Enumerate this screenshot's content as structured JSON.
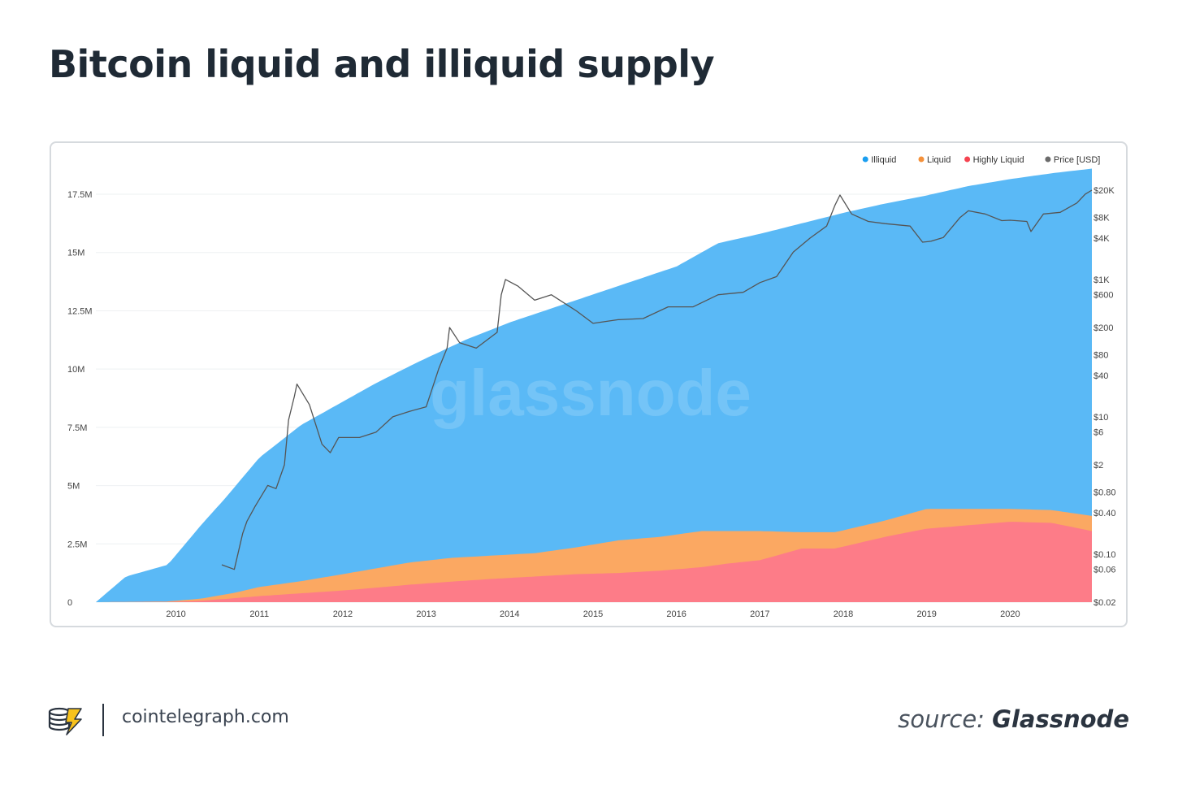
{
  "header": {
    "title": "Bitcoin liquid and illiquid supply"
  },
  "footer": {
    "site": "cointelegraph.com",
    "source_label": "source:",
    "source_name": "Glassnode"
  },
  "watermark": "glassnode",
  "chart_data": {
    "type": "area",
    "stacked": true,
    "legend_position": "top-right",
    "grid": true,
    "x_ticks": [
      "2010",
      "2011",
      "2012",
      "2013",
      "2014",
      "2015",
      "2016",
      "2017",
      "2018",
      "2019",
      "2020"
    ],
    "x_range": [
      2009.04,
      2020.98
    ],
    "y_left": {
      "range": [
        0,
        19000000
      ],
      "ticks": [
        0,
        2500000,
        5000000,
        7500000,
        10000000,
        12500000,
        15000000,
        17500000
      ],
      "tick_labels": [
        "0",
        "2.5M",
        "5M",
        "7.5M",
        "10M",
        "12.5M",
        "15M",
        "17.5M"
      ]
    },
    "y_right": {
      "scale": "log",
      "range": [
        0.02,
        20000
      ],
      "ticks": [
        20000,
        8000,
        4000,
        1000,
        600,
        200,
        80,
        40,
        10,
        6,
        2,
        0.8,
        0.4,
        0.1,
        0.06,
        0.02
      ],
      "tick_labels": [
        "$20K",
        "$8K",
        "$4K",
        "$1K",
        "$600",
        "$200",
        "$80",
        "$40",
        "$10",
        "$6",
        "$2",
        "$0.80",
        "$0.40",
        "$0.10",
        "$0.06",
        "$0.02"
      ]
    },
    "series": [
      {
        "name": "Illiquid",
        "color": "#5ab9f6",
        "legend_color": "#1a9ef0",
        "x": [
          2009.04,
          2009.4,
          2009.9,
          2010.3,
          2010.6,
          2011.0,
          2011.5,
          2012.0,
          2012.4,
          2012.9,
          2013.5,
          2014.0,
          2014.5,
          2015.0,
          2015.5,
          2016.0,
          2016.5,
          2017.0,
          2017.5,
          2018.0,
          2018.5,
          2019.0,
          2019.5,
          2020.0,
          2020.5,
          2020.98
        ],
        "values": [
          0,
          1100000,
          1600000,
          3300000,
          4500000,
          6200000,
          7600000,
          8600000,
          9400000,
          10300000,
          11300000,
          12000000,
          12600000,
          13200000,
          13800000,
          14400000,
          15400000,
          15800000,
          16250000,
          16700000,
          17100000,
          17450000,
          17850000,
          18150000,
          18400000,
          18600000
        ]
      },
      {
        "name": "Liquid",
        "color": "#fba862",
        "legend_color": "#f5913a",
        "x": [
          2009.04,
          2009.9,
          2010.3,
          2010.7,
          2011.0,
          2011.5,
          2012.0,
          2012.4,
          2012.8,
          2013.3,
          2013.8,
          2014.3,
          2014.8,
          2015.3,
          2015.8,
          2016.3,
          2016.6,
          2017.0,
          2017.5,
          2017.9,
          2018.5,
          2019.0,
          2019.5,
          2020.0,
          2020.5,
          2020.98
        ],
        "values": [
          0,
          30000,
          150000,
          400000,
          650000,
          900000,
          1200000,
          1450000,
          1700000,
          1900000,
          2000000,
          2100000,
          2350000,
          2650000,
          2800000,
          3050000,
          3050000,
          3050000,
          3000000,
          3000000,
          3500000,
          4000000,
          4000000,
          4000000,
          3950000,
          3700000
        ]
      },
      {
        "name": "Highly Liquid",
        "color": "#fd7c88",
        "legend_color": "#f54350",
        "x": [
          2009.04,
          2009.9,
          2010.3,
          2010.7,
          2011.0,
          2011.5,
          2012.0,
          2012.4,
          2012.8,
          2013.3,
          2013.8,
          2014.3,
          2014.8,
          2015.3,
          2015.8,
          2016.3,
          2016.6,
          2017.0,
          2017.5,
          2017.9,
          2018.5,
          2019.0,
          2019.5,
          2020.0,
          2020.5,
          2020.98
        ],
        "values": [
          0,
          10000,
          60000,
          170000,
          260000,
          380000,
          500000,
          620000,
          750000,
          880000,
          1000000,
          1100000,
          1200000,
          1250000,
          1350000,
          1500000,
          1650000,
          1800000,
          2300000,
          2300000,
          2800000,
          3150000,
          3300000,
          3450000,
          3400000,
          3050000
        ]
      }
    ],
    "price": {
      "name": "Price [USD]",
      "color": "#555555",
      "legend_color": "#6b6b6b",
      "x": [
        2010.55,
        2010.7,
        2010.8,
        2010.85,
        2010.95,
        2011.1,
        2011.2,
        2011.3,
        2011.35,
        2011.42,
        2011.45,
        2011.6,
        2011.75,
        2011.85,
        2011.95,
        2012.2,
        2012.4,
        2012.6,
        2012.8,
        2013.0,
        2013.15,
        2013.25,
        2013.28,
        2013.4,
        2013.6,
        2013.85,
        2013.9,
        2013.95,
        2014.1,
        2014.3,
        2014.5,
        2014.8,
        2015.0,
        2015.3,
        2015.6,
        2015.9,
        2016.2,
        2016.5,
        2016.8,
        2017.0,
        2017.2,
        2017.4,
        2017.6,
        2017.8,
        2017.9,
        2017.96,
        2018.1,
        2018.3,
        2018.5,
        2018.8,
        2018.95,
        2019.05,
        2019.2,
        2019.4,
        2019.5,
        2019.7,
        2019.9,
        2020.0,
        2020.2,
        2020.25,
        2020.4,
        2020.6,
        2020.8,
        2020.9,
        2020.98
      ],
      "values": [
        0.07,
        0.06,
        0.2,
        0.3,
        0.5,
        1,
        0.9,
        2,
        9,
        20,
        30,
        15,
        4,
        3,
        5,
        5,
        6,
        10,
        12,
        14,
        50,
        100,
        200,
        120,
        100,
        170,
        600,
        1000,
        800,
        500,
        600,
        350,
        230,
        260,
        270,
        400,
        400,
        600,
        650,
        900,
        1100,
        2500,
        4000,
        6000,
        12000,
        17000,
        9000,
        7000,
        6500,
        6000,
        3500,
        3600,
        4100,
        8000,
        10000,
        9000,
        7200,
        7300,
        7000,
        5000,
        9000,
        9500,
        13000,
        17500,
        20000
      ]
    }
  }
}
